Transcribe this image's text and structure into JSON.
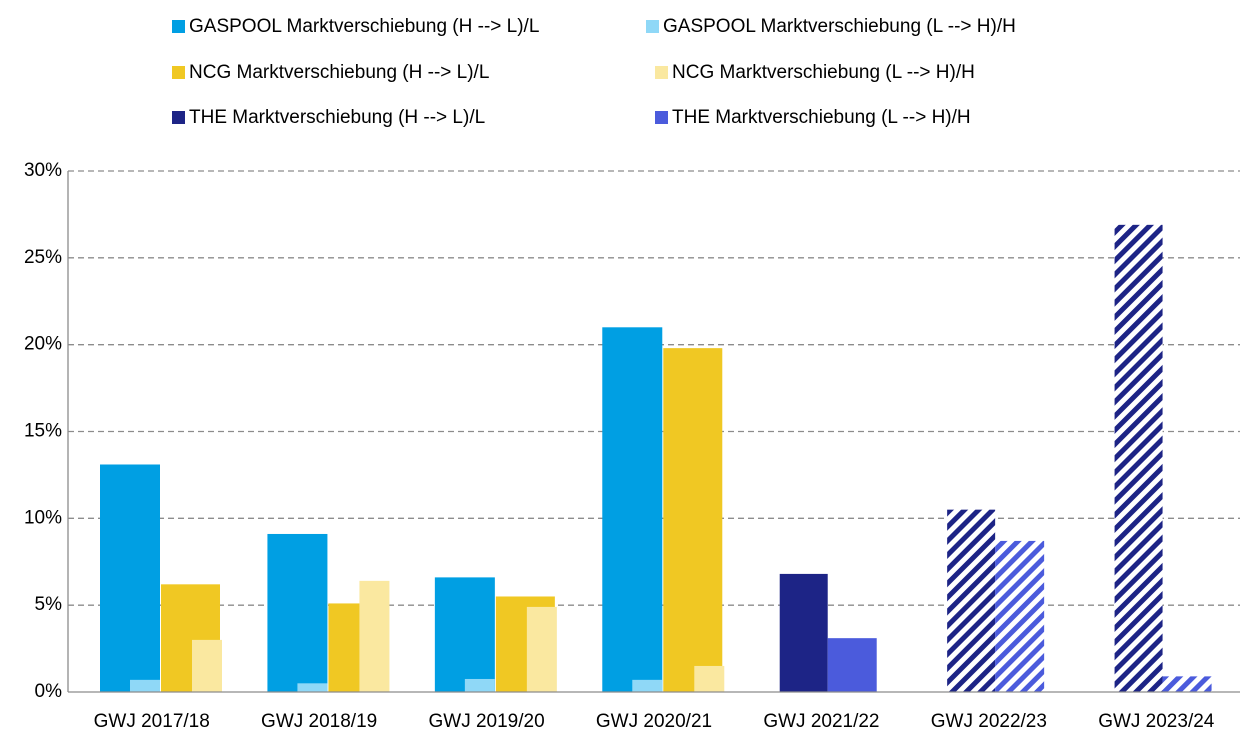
{
  "chart_data": {
    "type": "bar",
    "categories": [
      "GWJ 2017/18",
      "GWJ 2018/19",
      "GWJ 2019/20",
      "GWJ 2020/21",
      "GWJ 2021/22",
      "GWJ 2022/23",
      "GWJ 2023/24"
    ],
    "series": [
      {
        "name": "GASPOOL Marktverschiebung (H --> L)/L",
        "color": "#009fe3",
        "values": [
          13.1,
          9.1,
          6.6,
          21.0,
          null,
          null,
          null
        ]
      },
      {
        "name": "GASPOOL Marktverschiebung (L --> H)/H",
        "color": "#8fd8f7",
        "values": [
          0.7,
          0.5,
          0.75,
          0.7,
          null,
          null,
          null
        ]
      },
      {
        "name": "NCG Marktverschiebung (H --> L)/L",
        "color": "#f0c823",
        "values": [
          6.2,
          5.1,
          5.5,
          19.8,
          null,
          null,
          null
        ]
      },
      {
        "name": "NCG Marktverschiebung (L --> H)/H",
        "color": "#fae8a0",
        "values": [
          3.0,
          6.4,
          4.9,
          1.5,
          null,
          null,
          null
        ]
      },
      {
        "name": "THE Marktverschiebung (H --> L)/L",
        "color": "#1d2486",
        "values": [
          null,
          null,
          null,
          null,
          6.8,
          10.5,
          26.9
        ]
      },
      {
        "name": "THE Marktverschiebung (L --> H)/H",
        "color": "#4b5bdc",
        "values": [
          null,
          null,
          null,
          null,
          3.1,
          8.7,
          0.9
        ]
      }
    ],
    "hatched": [
      false,
      false,
      false,
      false,
      false,
      true,
      true
    ],
    "ylim": [
      0,
      30
    ],
    "yticks": [
      {
        "value": 0,
        "label": "0%"
      },
      {
        "value": 5,
        "label": "5%"
      },
      {
        "value": 10,
        "label": "10%"
      },
      {
        "value": 15,
        "label": "15%"
      },
      {
        "value": 20,
        "label": "20%"
      },
      {
        "value": 25,
        "label": "25%"
      },
      {
        "value": 30,
        "label": "30%"
      }
    ],
    "grid": true
  }
}
